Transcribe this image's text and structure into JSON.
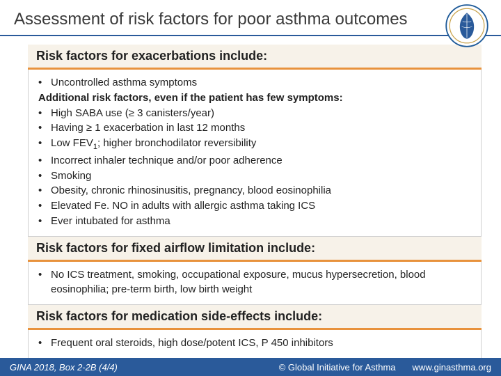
{
  "colors": {
    "title_text": "#3a3a3a",
    "rule": "#1a4a8a",
    "header_bg": "#f7f2e9",
    "header_border": "#e8923c",
    "body_border": "#cfcfcf",
    "body_text": "#222222",
    "footer_bg": "#2a5a9a",
    "footer_text": "#ffffff",
    "logo_ring": "#1f5b99",
    "logo_gold": "#c9a24a"
  },
  "title": "Assessment of risk factors for poor asthma outcomes",
  "sections": [
    {
      "header": "Risk factors for exacerbations include:",
      "lines": [
        {
          "bullet": true,
          "text": "Uncontrolled asthma symptoms"
        },
        {
          "bullet": false,
          "bold": true,
          "text": "Additional risk factors, even if the patient has few symptoms:"
        },
        {
          "bullet": true,
          "text": "High SABA use (≥ 3 canisters/year)"
        },
        {
          "bullet": true,
          "text": "Having ≥ 1 exacerbation in last 12 months"
        },
        {
          "bullet": true,
          "html": "Low FEV<span class=\"sub1\">1</span>; higher bronchodilator reversibility"
        },
        {
          "bullet": true,
          "text": "Incorrect inhaler technique and/or poor adherence"
        },
        {
          "bullet": true,
          "text": "Smoking"
        },
        {
          "bullet": true,
          "text": "Obesity, chronic rhinosinusitis, pregnancy, blood eosinophilia"
        },
        {
          "bullet": true,
          "text": "Elevated Fe. NO in adults with allergic asthma taking ICS"
        },
        {
          "bullet": true,
          "text": "Ever intubated for asthma"
        }
      ]
    },
    {
      "header": "Risk factors for fixed airflow limitation include:",
      "lines": [
        {
          "bullet": true,
          "text": "No ICS treatment, smoking, occupational exposure, mucus hypersecretion, blood eosinophilia; pre-term birth, low birth weight"
        }
      ]
    },
    {
      "header": "Risk factors for medication side-effects include:",
      "lines": [
        {
          "bullet": true,
          "text": "Frequent oral steroids, high dose/potent ICS, P 450 inhibitors"
        }
      ]
    }
  ],
  "footer": {
    "left": "GINA 2018, Box 2-2B (4/4)",
    "mid": "© Global Initiative for Asthma",
    "right": "www.ginasthma.org"
  },
  "logo_label": "Global Initiative for Asthma"
}
